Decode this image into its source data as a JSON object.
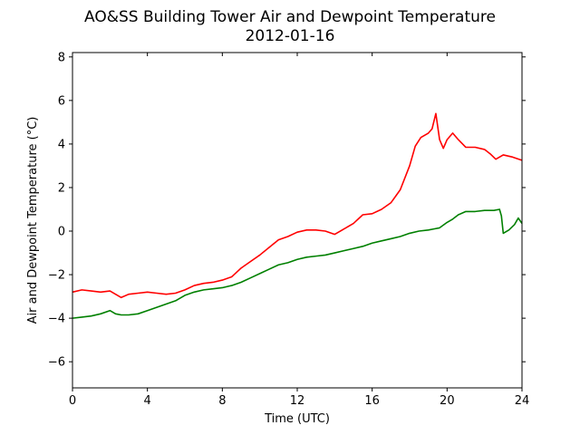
{
  "chart_data": {
    "type": "line",
    "title": "AO&SS Building Tower Air and Dewpoint Temperature",
    "subtitle": "2012-01-16",
    "xlabel": "Time (UTC)",
    "ylabel": "Air and Dewpoint Temperature (°C)",
    "xlim": [
      0,
      24
    ],
    "ylim": [
      -7.2,
      8.2
    ],
    "xticks": [
      0,
      4,
      8,
      12,
      16,
      20,
      24
    ],
    "yticks": [
      -6,
      -4,
      -2,
      0,
      2,
      4,
      6,
      8
    ],
    "grid": false,
    "legend": "none",
    "series": [
      {
        "color": "#ff0000",
        "x": [
          0,
          0.5,
          1,
          1.5,
          2,
          2.3,
          2.6,
          3,
          3.5,
          4,
          4.5,
          5,
          5.5,
          6,
          6.5,
          7,
          7.5,
          8,
          8.5,
          9,
          9.5,
          10,
          10.5,
          11,
          11.5,
          12,
          12.5,
          13,
          13.5,
          14,
          14.5,
          15,
          15.5,
          16,
          16.5,
          17,
          17.5,
          18,
          18.3,
          18.6,
          19,
          19.2,
          19.4,
          19.6,
          19.8,
          20,
          20.3,
          20.6,
          21,
          21.5,
          22,
          22.3,
          22.6,
          23,
          23.5,
          24
        ],
        "y": [
          -2.8,
          -2.7,
          -2.75,
          -2.8,
          -2.75,
          -2.9,
          -3.05,
          -2.9,
          -2.85,
          -2.8,
          -2.85,
          -2.9,
          -2.85,
          -2.7,
          -2.5,
          -2.4,
          -2.35,
          -2.25,
          -2.1,
          -1.7,
          -1.4,
          -1.1,
          -0.75,
          -0.4,
          -0.25,
          -0.05,
          0.05,
          0.05,
          0.0,
          -0.15,
          0.1,
          0.35,
          0.75,
          0.8,
          1.0,
          1.3,
          1.9,
          3.0,
          3.9,
          4.3,
          4.5,
          4.7,
          5.4,
          4.2,
          3.8,
          4.2,
          4.5,
          4.2,
          3.85,
          3.85,
          3.75,
          3.55,
          3.3,
          3.5,
          3.4,
          3.25
        ]
      },
      {
        "color": "#008000",
        "x": [
          0,
          0.5,
          1,
          1.5,
          2,
          2.3,
          2.6,
          3,
          3.5,
          4,
          4.5,
          5,
          5.5,
          6,
          6.5,
          7,
          7.5,
          8,
          8.5,
          9,
          9.5,
          10,
          10.5,
          11,
          11.5,
          12,
          12.5,
          13,
          13.5,
          14,
          14.5,
          15,
          15.5,
          16,
          16.5,
          17,
          17.5,
          18,
          18.5,
          19,
          19.3,
          19.6,
          20,
          20.3,
          20.6,
          21,
          21.5,
          22,
          22.5,
          22.8,
          22.9,
          23,
          23.3,
          23.6,
          23.8,
          24
        ],
        "y": [
          -4.0,
          -3.95,
          -3.9,
          -3.8,
          -3.65,
          -3.8,
          -3.85,
          -3.85,
          -3.8,
          -3.65,
          -3.5,
          -3.35,
          -3.2,
          -2.95,
          -2.8,
          -2.7,
          -2.65,
          -2.6,
          -2.5,
          -2.35,
          -2.15,
          -1.95,
          -1.75,
          -1.55,
          -1.45,
          -1.3,
          -1.2,
          -1.15,
          -1.1,
          -1.0,
          -0.9,
          -0.8,
          -0.7,
          -0.55,
          -0.45,
          -0.35,
          -0.25,
          -0.1,
          0.0,
          0.05,
          0.1,
          0.15,
          0.4,
          0.55,
          0.75,
          0.9,
          0.9,
          0.95,
          0.95,
          1.0,
          0.7,
          -0.1,
          0.05,
          0.3,
          0.6,
          0.35
        ]
      }
    ]
  }
}
